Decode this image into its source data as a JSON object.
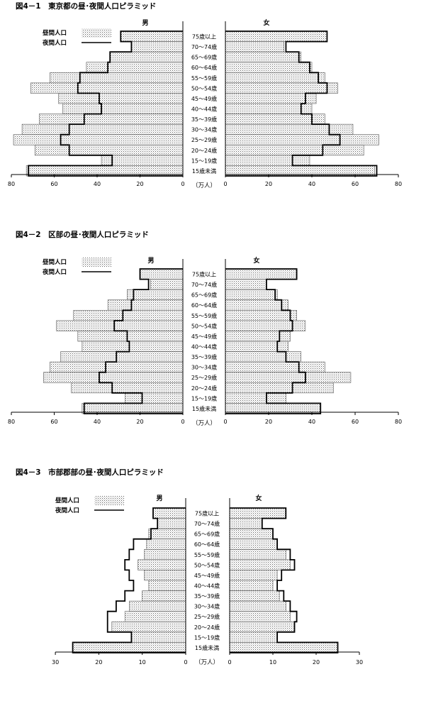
{
  "chart_data": [
    {
      "type": "population-pyramid",
      "title": "図4－1　東京都の昼･夜間人口ピラミッド",
      "left_label": "男",
      "right_label": "女",
      "legend": {
        "day": "昼間人口",
        "night": "夜間人口"
      },
      "unit_label": "（万人）",
      "xlim": [
        0,
        80
      ],
      "ticks": [
        80,
        60,
        40,
        20,
        0
      ],
      "categories": [
        "75歳以上",
        "70～74歳",
        "65～69歳",
        "60～64歳",
        "55～59歳",
        "50～54歳",
        "45～49歳",
        "40～44歳",
        "35～39歳",
        "30～34歳",
        "25～29歳",
        "20～24歳",
        "15～19歳",
        "15歳未満"
      ],
      "series": [
        {
          "name": "昼間人口",
          "side": "male",
          "values": [
            29,
            24,
            34,
            45,
            62,
            71,
            58,
            56,
            67,
            75,
            79,
            69,
            38,
            73
          ]
        },
        {
          "name": "夜間人口",
          "side": "male",
          "values": [
            29,
            24,
            34,
            35,
            48,
            49,
            39,
            38,
            46,
            53,
            57,
            53,
            33,
            72
          ]
        },
        {
          "name": "昼間人口",
          "side": "female",
          "values": [
            47,
            27,
            35,
            40,
            46,
            52,
            42,
            40,
            46,
            59,
            71,
            64,
            39,
            69
          ]
        },
        {
          "name": "夜間人口",
          "side": "female",
          "values": [
            47,
            28,
            34,
            39,
            43,
            47,
            37,
            35,
            40,
            48,
            53,
            45,
            31,
            70
          ]
        }
      ]
    },
    {
      "type": "population-pyramid",
      "title": "図4－2　区部の昼･夜間人口ピラミッド",
      "left_label": "男",
      "right_label": "女",
      "legend": {
        "day": "昼間人口",
        "night": "夜間人口"
      },
      "unit_label": "（万人）",
      "xlim": [
        0,
        80
      ],
      "ticks": [
        80,
        60,
        40,
        20,
        0
      ],
      "categories": [
        "75歳以上",
        "70～74歳",
        "65～69歳",
        "60～64歳",
        "55～59歳",
        "50～54歳",
        "45～49歳",
        "40～44歳",
        "35～39歳",
        "30～34歳",
        "25～29歳",
        "20～24歳",
        "15～19歳",
        "15歳未満"
      ],
      "series": [
        {
          "name": "昼間人口",
          "side": "male",
          "values": [
            20,
            15,
            26,
            35,
            51,
            59,
            49,
            47,
            57,
            62,
            65,
            52,
            27,
            47
          ]
        },
        {
          "name": "夜間人口",
          "side": "male",
          "values": [
            20,
            16,
            23,
            24,
            28,
            32,
            26,
            25,
            31,
            36,
            39,
            33,
            19,
            46
          ]
        },
        {
          "name": "昼間人口",
          "side": "female",
          "values": [
            33,
            19,
            24,
            29,
            33,
            37,
            30,
            29,
            35,
            46,
            58,
            50,
            28,
            44
          ]
        },
        {
          "name": "夜間人口",
          "side": "female",
          "values": [
            33,
            19,
            23,
            26,
            30,
            31,
            25,
            24,
            28,
            34,
            37,
            31,
            19,
            44
          ]
        }
      ]
    },
    {
      "type": "population-pyramid",
      "title": "図4－3　市部郡部の昼･夜間人口ピラミッド",
      "left_label": "男",
      "right_label": "女",
      "legend": {
        "day": "昼間人口",
        "night": "夜間人口"
      },
      "unit_label": "（万人）",
      "xlim": [
        0,
        30
      ],
      "ticks": [
        30,
        20,
        10,
        0
      ],
      "categories": [
        "75歳以上",
        "70～74歳",
        "65～69歳",
        "60～64歳",
        "55～59歳",
        "50～54歳",
        "45～49歳",
        "40～44歳",
        "35～39歳",
        "30～34歳",
        "25～29歳",
        "20～24歳",
        "15～19歳",
        "15歳未満"
      ],
      "series": [
        {
          "name": "昼間人口",
          "side": "male",
          "values": [
            7.5,
            6.5,
            8.5,
            9,
            9.5,
            11,
            9.5,
            8.5,
            10,
            13,
            14,
            17,
            12.5,
            26
          ]
        },
        {
          "name": "夜間人口",
          "side": "male",
          "values": [
            7.5,
            6.5,
            8,
            12,
            13,
            14,
            13,
            12,
            14,
            16,
            18,
            18,
            12.5,
            26
          ]
        },
        {
          "name": "昼間人口",
          "side": "female",
          "values": [
            13,
            7.5,
            10,
            11,
            13,
            14,
            11,
            10,
            11.5,
            13,
            14,
            15,
            11,
            25
          ]
        },
        {
          "name": "夜間人口",
          "side": "female",
          "values": [
            13,
            7.5,
            10,
            11,
            14,
            15,
            12,
            11,
            12.5,
            14,
            15.5,
            15,
            11,
            25
          ]
        }
      ]
    }
  ]
}
